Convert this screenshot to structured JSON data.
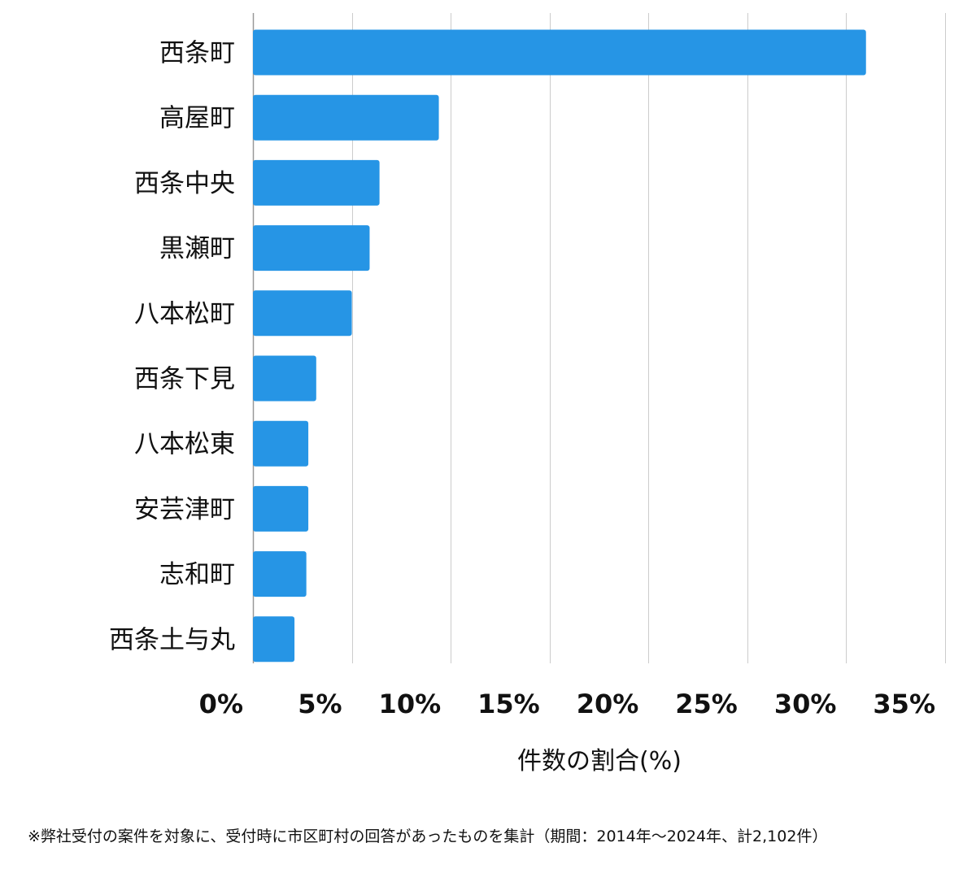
{
  "chart_data": {
    "type": "bar",
    "orientation": "horizontal",
    "categories": [
      "西条町",
      "高屋町",
      "西条中央",
      "黒瀬町",
      "八本松町",
      "西条下見",
      "八本松東",
      "安芸津町",
      "志和町",
      "西条土与丸"
    ],
    "values": [
      31.0,
      9.4,
      6.4,
      5.9,
      5.0,
      3.2,
      2.8,
      2.8,
      2.7,
      2.1
    ],
    "xlabel": "件数の割合(%)",
    "ylabel": "",
    "xlim": [
      0,
      35
    ],
    "xticks": [
      0,
      5,
      10,
      15,
      20,
      25,
      30,
      35
    ],
    "xtick_labels": [
      "0%",
      "5%",
      "10%",
      "15%",
      "20%",
      "25%",
      "30%",
      "35%"
    ],
    "grid": true,
    "colors": {
      "bar": "#2695e5",
      "grid": "#cccccc",
      "axis": "#999999"
    }
  },
  "footnote": "※弊社受付の案件を対象に、受付時に市区町村の回答があったものを集計（期間：2014年〜2024年、計2,102件）"
}
